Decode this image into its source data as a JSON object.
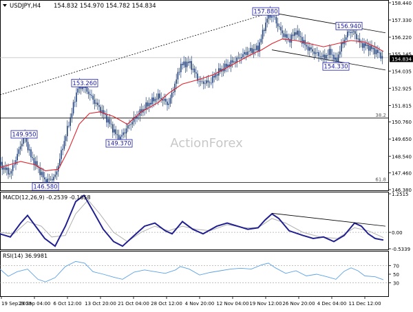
{
  "header": {
    "symbol": "USDJPY,H4",
    "ohlc": "154.832 154.970 154.782 154.834"
  },
  "watermark": "ActionForex",
  "chart_data": [
    {
      "id": "price",
      "type": "candlestick",
      "title": "USDJPY,H4",
      "ylim": [
        146.38,
        158.44
      ],
      "y_ticks": [
        "158.440",
        "157.330",
        "156.220",
        "155.145",
        "154.035",
        "152.925",
        "151.815",
        "150.760",
        "149.650",
        "148.540",
        "147.460",
        "146.380"
      ],
      "last_price": "154.834",
      "fib_levels": [
        {
          "label": "38.2",
          "value": 151.0
        },
        {
          "label": "61.8",
          "value": 146.85
        }
      ],
      "horizontal_line": 154.9,
      "swing_labels": [
        {
          "label": "157.880",
          "x": 386,
          "y": 157.88
        },
        {
          "label": "156.940",
          "x": 507,
          "y": 156.94
        },
        {
          "label": "154.330",
          "x": 488,
          "y": 154.33
        },
        {
          "label": "153.260",
          "x": 123,
          "y": 153.26
        },
        {
          "label": "149.950",
          "x": 35,
          "y": 149.95
        },
        {
          "label": "149.370",
          "x": 173,
          "y": 149.37
        },
        {
          "label": "146.580",
          "x": 66,
          "y": 146.58
        }
      ],
      "close_path": [
        [
          0,
          148.0
        ],
        [
          15,
          147.4
        ],
        [
          25,
          148.6
        ],
        [
          35,
          149.9
        ],
        [
          45,
          148.5
        ],
        [
          55,
          147.8
        ],
        [
          66,
          146.9
        ],
        [
          80,
          147.2
        ],
        [
          95,
          149.8
        ],
        [
          105,
          151.5
        ],
        [
          113,
          153.0
        ],
        [
          123,
          153.0
        ],
        [
          135,
          152.2
        ],
        [
          150,
          151.3
        ],
        [
          160,
          150.6
        ],
        [
          173,
          149.6
        ],
        [
          185,
          150.4
        ],
        [
          200,
          151.2
        ],
        [
          215,
          151.9
        ],
        [
          230,
          152.4
        ],
        [
          245,
          151.9
        ],
        [
          255,
          153.3
        ],
        [
          262,
          154.4
        ],
        [
          275,
          154.6
        ],
        [
          290,
          153.3
        ],
        [
          305,
          153.3
        ],
        [
          315,
          153.9
        ],
        [
          330,
          154.4
        ],
        [
          345,
          154.8
        ],
        [
          360,
          155.3
        ],
        [
          375,
          155.5
        ],
        [
          383,
          156.7
        ],
        [
          390,
          157.7
        ],
        [
          398,
          157.5
        ],
        [
          408,
          156.6
        ],
        [
          420,
          156.0
        ],
        [
          430,
          156.6
        ],
        [
          445,
          155.6
        ],
        [
          458,
          155.2
        ],
        [
          470,
          154.9
        ],
        [
          480,
          155.3
        ],
        [
          488,
          154.6
        ],
        [
          497,
          155.8
        ],
        [
          507,
          156.6
        ],
        [
          515,
          156.5
        ],
        [
          523,
          155.8
        ],
        [
          535,
          155.6
        ],
        [
          543,
          155.4
        ],
        [
          552,
          155.1
        ],
        [
          557,
          154.83
        ]
      ],
      "ma_path": [
        [
          0,
          147.8
        ],
        [
          30,
          148.2
        ],
        [
          50,
          148.0
        ],
        [
          66,
          147.6
        ],
        [
          85,
          147.7
        ],
        [
          100,
          149.0
        ],
        [
          115,
          150.6
        ],
        [
          130,
          151.3
        ],
        [
          145,
          151.4
        ],
        [
          165,
          151.1
        ],
        [
          185,
          150.6
        ],
        [
          205,
          151.4
        ],
        [
          230,
          152.0
        ],
        [
          245,
          152.6
        ],
        [
          265,
          153.2
        ],
        [
          290,
          153.5
        ],
        [
          310,
          153.8
        ],
        [
          340,
          154.5
        ],
        [
          365,
          155.1
        ],
        [
          380,
          155.4
        ],
        [
          395,
          155.8
        ],
        [
          410,
          156.1
        ],
        [
          430,
          156.0
        ],
        [
          450,
          155.8
        ],
        [
          470,
          155.6
        ],
        [
          490,
          155.8
        ],
        [
          510,
          156.0
        ],
        [
          530,
          155.9
        ],
        [
          545,
          155.6
        ],
        [
          557,
          155.3
        ]
      ],
      "trendlines": [
        {
          "style": "dotted",
          "points": [
            [
              0,
              152.5
            ],
            [
              400,
              157.9
            ]
          ]
        },
        {
          "style": "solid",
          "points": [
            [
              395,
              157.8
            ],
            [
              560,
              156.5
            ]
          ]
        },
        {
          "style": "solid",
          "points": [
            [
              395,
              155.4
            ],
            [
              560,
              154.1
            ]
          ]
        }
      ]
    },
    {
      "id": "macd",
      "type": "line",
      "title": "MACD(12,26,9) -0.2539 -0.1658",
      "ylim": [
        -0.5339,
        1.2515
      ],
      "y_ticks": [
        "1.2515",
        "0.00",
        "-0.5339"
      ],
      "macd_path": [
        [
          0,
          -0.05
        ],
        [
          15,
          -0.15
        ],
        [
          30,
          0.3
        ],
        [
          40,
          0.55
        ],
        [
          55,
          0.1
        ],
        [
          65,
          -0.2
        ],
        [
          80,
          -0.45
        ],
        [
          95,
          0.2
        ],
        [
          110,
          1.0
        ],
        [
          122,
          1.2
        ],
        [
          135,
          0.7
        ],
        [
          150,
          0.1
        ],
        [
          165,
          -0.3
        ],
        [
          178,
          -0.45
        ],
        [
          195,
          -0.1
        ],
        [
          210,
          0.2
        ],
        [
          225,
          0.3
        ],
        [
          240,
          0.05
        ],
        [
          250,
          -0.05
        ],
        [
          265,
          0.35
        ],
        [
          280,
          0.1
        ],
        [
          295,
          -0.05
        ],
        [
          315,
          0.2
        ],
        [
          330,
          0.3
        ],
        [
          345,
          0.2
        ],
        [
          360,
          0.1
        ],
        [
          375,
          0.15
        ],
        [
          385,
          0.4
        ],
        [
          395,
          0.6
        ],
        [
          405,
          0.45
        ],
        [
          420,
          0.05
        ],
        [
          440,
          -0.1
        ],
        [
          455,
          -0.2
        ],
        [
          470,
          -0.15
        ],
        [
          485,
          -0.3
        ],
        [
          500,
          -0.1
        ],
        [
          515,
          0.3
        ],
        [
          525,
          0.2
        ],
        [
          535,
          -0.05
        ],
        [
          545,
          -0.2
        ],
        [
          557,
          -0.25
        ]
      ],
      "signal_path": [
        [
          0,
          0.0
        ],
        [
          20,
          -0.05
        ],
        [
          40,
          0.35
        ],
        [
          60,
          0.2
        ],
        [
          75,
          -0.15
        ],
        [
          95,
          -0.1
        ],
        [
          110,
          0.6
        ],
        [
          128,
          1.05
        ],
        [
          145,
          0.6
        ],
        [
          165,
          0.0
        ],
        [
          185,
          -0.3
        ],
        [
          205,
          0.0
        ],
        [
          225,
          0.2
        ],
        [
          245,
          0.05
        ],
        [
          265,
          0.2
        ],
        [
          285,
          0.1
        ],
        [
          305,
          0.05
        ],
        [
          330,
          0.25
        ],
        [
          355,
          0.15
        ],
        [
          375,
          0.15
        ],
        [
          395,
          0.45
        ],
        [
          415,
          0.3
        ],
        [
          440,
          0.0
        ],
        [
          465,
          -0.15
        ],
        [
          490,
          -0.2
        ],
        [
          515,
          0.15
        ],
        [
          535,
          0.05
        ],
        [
          557,
          -0.17
        ]
      ],
      "trendline": [
        [
          395,
          0.62
        ],
        [
          560,
          0.2
        ]
      ]
    },
    {
      "id": "rsi",
      "type": "line",
      "title": "RSI(14) 36.9981",
      "ylim": [
        0,
        100
      ],
      "y_ticks": [
        "70",
        "50",
        "30"
      ],
      "levels": [
        70,
        30
      ],
      "rsi_path": [
        [
          0,
          62
        ],
        [
          12,
          45
        ],
        [
          25,
          56
        ],
        [
          40,
          62
        ],
        [
          55,
          38
        ],
        [
          66,
          32
        ],
        [
          80,
          42
        ],
        [
          95,
          68
        ],
        [
          110,
          80
        ],
        [
          123,
          76
        ],
        [
          135,
          56
        ],
        [
          150,
          50
        ],
        [
          165,
          43
        ],
        [
          178,
          38
        ],
        [
          195,
          55
        ],
        [
          210,
          60
        ],
        [
          225,
          56
        ],
        [
          240,
          52
        ],
        [
          255,
          60
        ],
        [
          262,
          68
        ],
        [
          275,
          62
        ],
        [
          290,
          48
        ],
        [
          305,
          54
        ],
        [
          320,
          58
        ],
        [
          335,
          62
        ],
        [
          350,
          64
        ],
        [
          365,
          62
        ],
        [
          380,
          72
        ],
        [
          390,
          76
        ],
        [
          400,
          65
        ],
        [
          415,
          52
        ],
        [
          430,
          58
        ],
        [
          445,
          46
        ],
        [
          460,
          50
        ],
        [
          475,
          44
        ],
        [
          488,
          38
        ],
        [
          500,
          57
        ],
        [
          510,
          65
        ],
        [
          520,
          58
        ],
        [
          530,
          46
        ],
        [
          545,
          44
        ],
        [
          557,
          37
        ]
      ]
    }
  ],
  "x_axis": {
    "labels": [
      "19 Sep 2025",
      "29 Sep 04:00",
      "6 Oct 12:00",
      "13 Oct 20:00",
      "21 Oct 04:00",
      "28 Oct 12:00",
      "4 Nov 20:00",
      "12 Nov 04:00",
      "19 Nov 12:00",
      "26 Nov 20:00",
      "4 Dec 04:00",
      "11 Dec 12:00"
    ]
  }
}
